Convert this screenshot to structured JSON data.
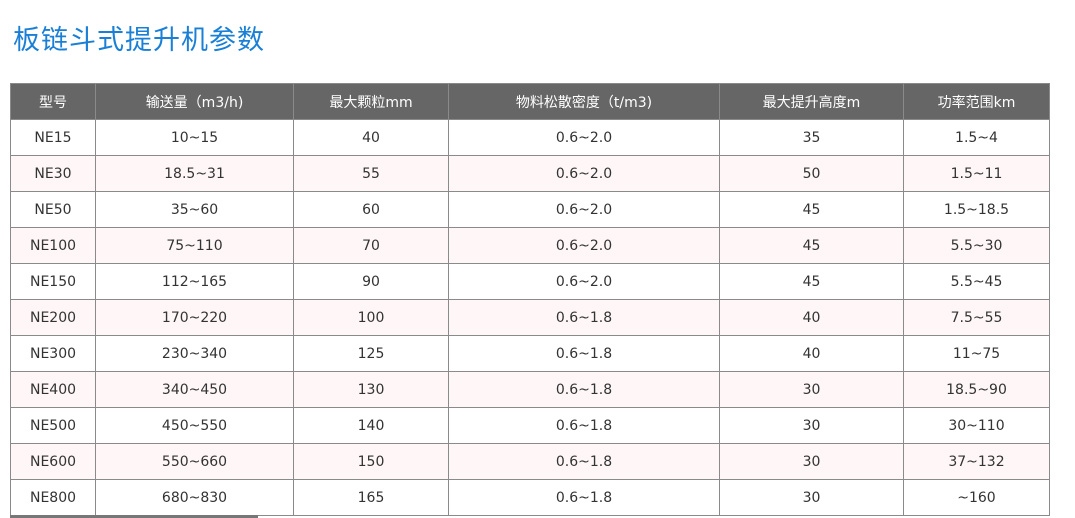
{
  "title": "板链斗式提升机参数",
  "colors": {
    "title": "#1a7fd6",
    "header_bg": "#666666",
    "alt_row_bg": "#fff7f7"
  },
  "table": {
    "headers": [
      "型号",
      "输送量（m3/h)",
      "最大颗粒mm",
      "物料松散密度（t/m3)",
      "最大提升高度m",
      "功率范围km"
    ],
    "rows": [
      [
        "NE15",
        "10~15",
        "40",
        "0.6~2.0",
        "35",
        "1.5~4"
      ],
      [
        "NE30",
        "18.5~31",
        "55",
        "0.6~2.0",
        "50",
        "1.5~11"
      ],
      [
        "NE50",
        "35~60",
        "60",
        "0.6~2.0",
        "45",
        "1.5~18.5"
      ],
      [
        "NE100",
        "75~110",
        "70",
        "0.6~2.0",
        "45",
        "5.5~30"
      ],
      [
        "NE150",
        "112~165",
        "90",
        "0.6~2.0",
        "45",
        "5.5~45"
      ],
      [
        "NE200",
        "170~220",
        "100",
        "0.6~1.8",
        "40",
        "7.5~55"
      ],
      [
        "NE300",
        "230~340",
        "125",
        "0.6~1.8",
        "40",
        "11~75"
      ],
      [
        "NE400",
        "340~450",
        "130",
        "0.6~1.8",
        "30",
        "18.5~90"
      ],
      [
        "NE500",
        "450~550",
        "140",
        "0.6~1.8",
        "30",
        "30~110"
      ],
      [
        "NE600",
        "550~660",
        "150",
        "0.6~1.8",
        "30",
        "37~132"
      ],
      [
        "NE800",
        "680~830",
        "165",
        "0.6~1.8",
        "30",
        "~160"
      ]
    ]
  }
}
